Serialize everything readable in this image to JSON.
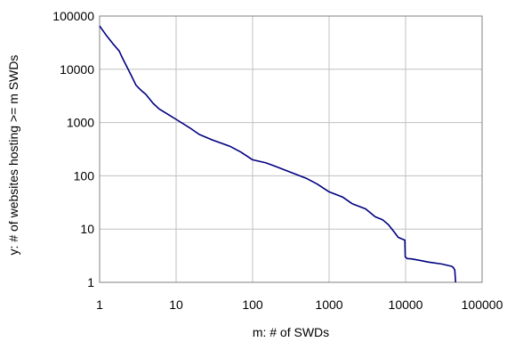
{
  "chart_data": {
    "type": "line",
    "xscale": "log",
    "yscale": "log",
    "xlim": [
      1,
      100000
    ],
    "ylim": [
      1,
      100000
    ],
    "xlabel": "m:  # of SWDs",
    "ylabel": "y:  # of websites hosting >= m SWDs",
    "grid": true,
    "legend": "none",
    "xticks": [
      "1",
      "10",
      "100",
      "1000",
      "10000",
      "100000"
    ],
    "yticks": [
      "1",
      "10",
      "100",
      "1000",
      "10000",
      "100000"
    ],
    "line_color": "#000080",
    "series": [
      {
        "x": [
          1,
          1.2,
          1.5,
          1.8,
          2,
          2.5,
          3,
          3.5,
          4,
          5,
          6,
          8,
          10,
          15,
          20,
          30,
          50,
          70,
          100,
          150,
          200,
          300,
          500,
          700,
          1000,
          1500,
          2000,
          3000,
          4000,
          5000,
          6000,
          7000,
          8000,
          9000,
          9800,
          9900,
          10500,
          12000,
          15000,
          20000,
          30000,
          40000,
          42000,
          44000,
          45000
        ],
        "y": [
          65000,
          45000,
          30000,
          22000,
          16000,
          8500,
          5000,
          4000,
          3400,
          2300,
          1800,
          1400,
          1150,
          800,
          600,
          470,
          360,
          280,
          200,
          175,
          150,
          120,
          90,
          70,
          50,
          40,
          30,
          24,
          17,
          15,
          12,
          9,
          7,
          6.5,
          6.2,
          3,
          2.8,
          2.75,
          2.6,
          2.4,
          2.2,
          2,
          1.9,
          1.7,
          1
        ]
      }
    ]
  }
}
